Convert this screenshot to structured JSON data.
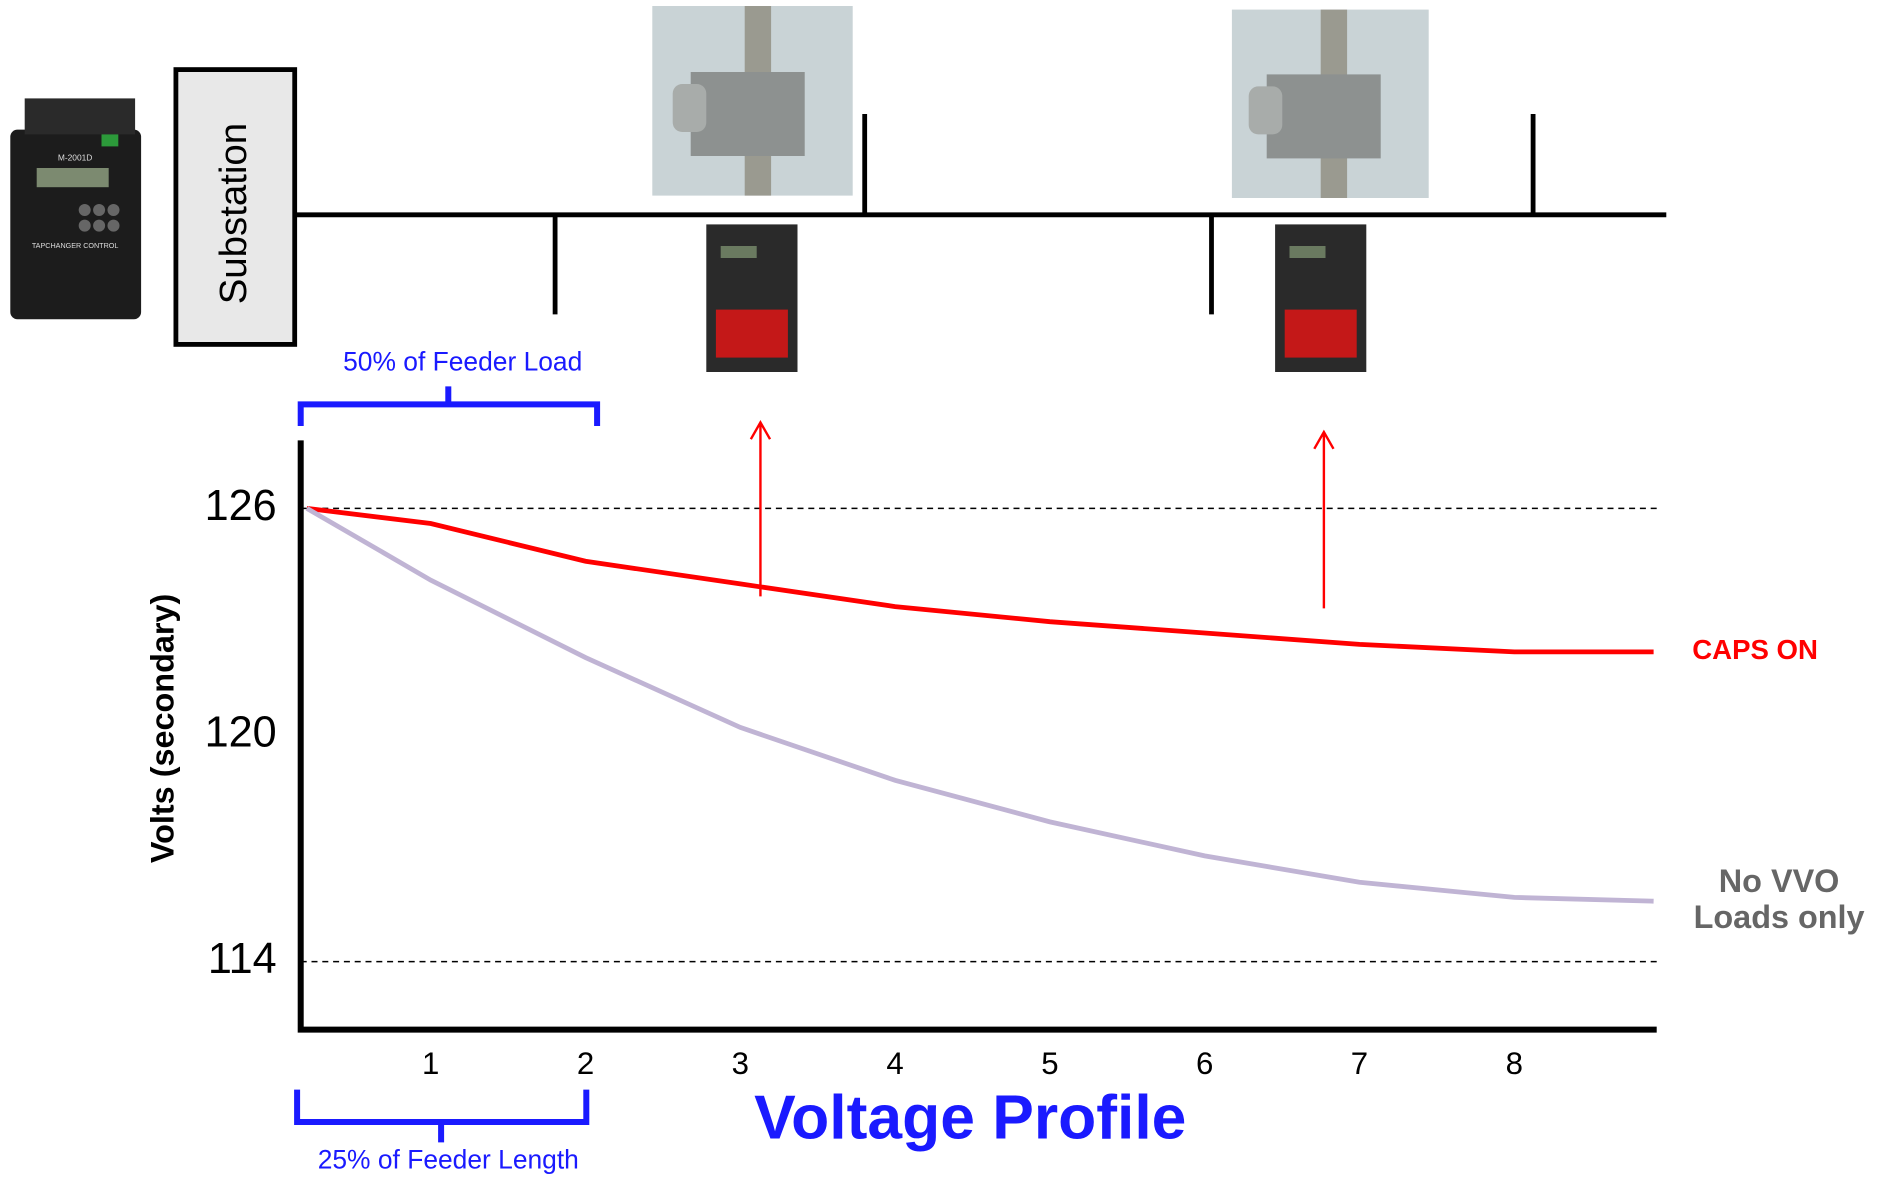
{
  "chart_data": {
    "type": "line",
    "title": "Voltage Profile",
    "y_label": "Volts (secondary)",
    "x": [
      0.2,
      1,
      2,
      3,
      4,
      5,
      6,
      7,
      8,
      8.9
    ],
    "series": [
      {
        "name": "CAPS ON",
        "color": "#ff0000",
        "values": [
          126,
          125.6,
          124.6,
          124.0,
          123.4,
          123.0,
          122.7,
          122.4,
          122.2,
          122.2
        ]
      },
      {
        "name": "No VVO\nLoads only",
        "color": "#c0b4d4",
        "label_color": "#666666",
        "values": [
          126,
          124.1,
          122.05,
          120.2,
          118.8,
          117.7,
          116.8,
          116.1,
          115.7,
          115.6
        ]
      }
    ],
    "xlim": [
      0.16,
      8.92
    ],
    "xticks": [
      1,
      2,
      3,
      4,
      5,
      6,
      7,
      8
    ],
    "ylim": [
      112.2,
      127.8
    ],
    "yticks": [
      114,
      120,
      126
    ],
    "reference_lines": [
      126,
      114
    ],
    "annotations": {
      "load": "50% of Feeder Load",
      "length": "25% of Feeder Length"
    },
    "regulator_x": [
      3.13,
      6.77
    ]
  },
  "diagram": {
    "substation": "Substation",
    "device_model": "M-2001D",
    "device_name": "TAPCHANGER CONTROL"
  }
}
